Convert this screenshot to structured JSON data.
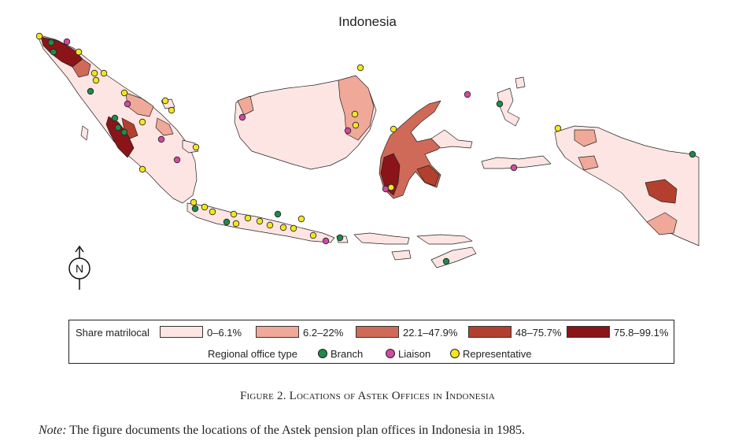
{
  "title": "Indonesia",
  "compass": {
    "letter": "N",
    "icon": "north-arrow-icon"
  },
  "legend": {
    "share_label": "Share matrilocal",
    "bins": [
      {
        "label": "0–6.1%",
        "color": "#fde5e3"
      },
      {
        "label": "6.2–22%",
        "color": "#f0a898"
      },
      {
        "label": "22.1–47.9%",
        "color": "#d06a58"
      },
      {
        "label": "48–75.7%",
        "color": "#b3402e"
      },
      {
        "label": "75.8–99.1%",
        "color": "#8a1418"
      }
    ],
    "office_label": "Regional office type",
    "office_types": [
      {
        "label": "Branch",
        "color": "#1e8a4a"
      },
      {
        "label": "Liaison",
        "color": "#d04aa0"
      },
      {
        "label": "Representative",
        "color": "#f3e61e"
      }
    ]
  },
  "caption": "Figure 2. Locations of Astek Offices in Indonesia",
  "note_label": "Note:",
  "note_text": "The figure documents the locations of the Astek pension plan offices in Indonesia in 1985."
}
